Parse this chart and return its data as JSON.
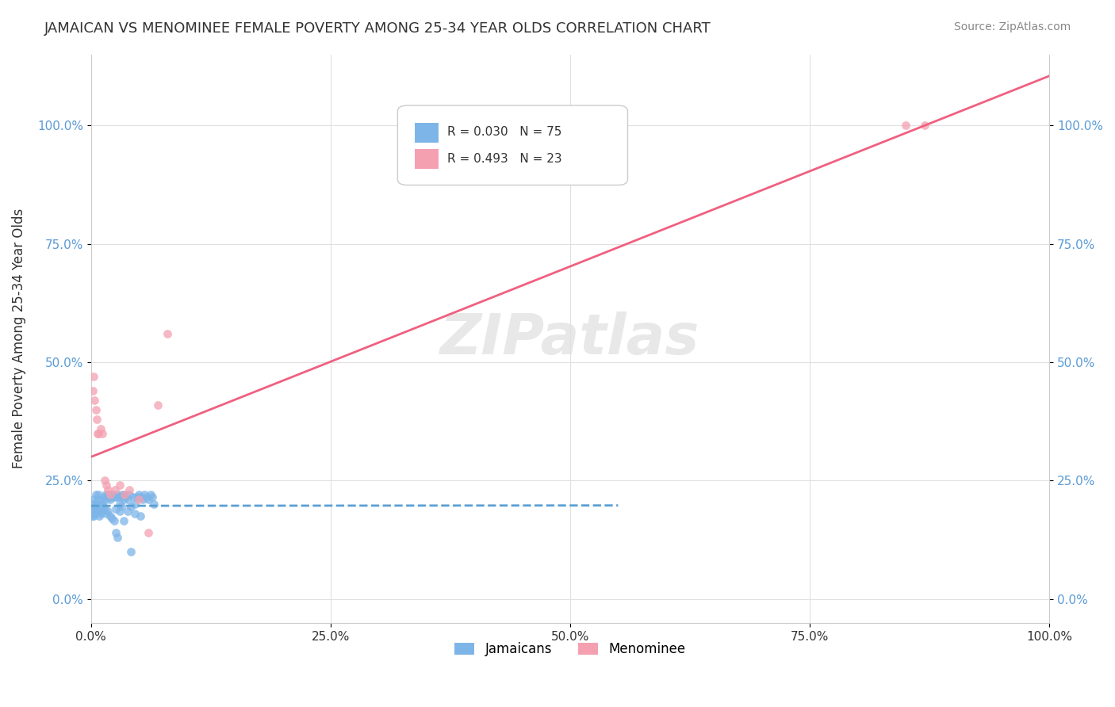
{
  "title": "JAMAICAN VS MENOMINEE FEMALE POVERTY AMONG 25-34 YEAR OLDS CORRELATION CHART",
  "source": "Source: ZipAtlas.com",
  "ylabel": "Female Poverty Among 25-34 Year Olds",
  "xlabel": "",
  "legend_labels": [
    "Jamaicans",
    "Menominee"
  ],
  "r_jamaican": 0.03,
  "n_jamaican": 75,
  "r_menominee": 0.493,
  "n_menominee": 23,
  "background_color": "#ffffff",
  "jamaican_color": "#7eb5e8",
  "menominee_color": "#f4a0b0",
  "jamaican_line_color": "#5a9fd4",
  "menominee_line_color": "#f06080",
  "watermark_color": "#e8e8e8",
  "dot_alpha": 0.75,
  "dot_size": 60,
  "jamaican_x": [
    0.0,
    0.001,
    0.002,
    0.003,
    0.003,
    0.004,
    0.005,
    0.005,
    0.006,
    0.007,
    0.008,
    0.009,
    0.01,
    0.011,
    0.012,
    0.013,
    0.014,
    0.015,
    0.016,
    0.018,
    0.019,
    0.02,
    0.021,
    0.022,
    0.023,
    0.025,
    0.026,
    0.027,
    0.028,
    0.03,
    0.031,
    0.032,
    0.034,
    0.035,
    0.036,
    0.038,
    0.04,
    0.042,
    0.044,
    0.046,
    0.048,
    0.05,
    0.052,
    0.054,
    0.056,
    0.058,
    0.06,
    0.062,
    0.064,
    0.066,
    0.001,
    0.002,
    0.003,
    0.004,
    0.006,
    0.007,
    0.008,
    0.009,
    0.01,
    0.012,
    0.014,
    0.016,
    0.018,
    0.02,
    0.022,
    0.024,
    0.026,
    0.028,
    0.03,
    0.032,
    0.034,
    0.038,
    0.042,
    0.046,
    0.052
  ],
  "jamaican_y": [
    0.18,
    0.19,
    0.2,
    0.21,
    0.175,
    0.18,
    0.22,
    0.19,
    0.2,
    0.21,
    0.22,
    0.195,
    0.185,
    0.21,
    0.2,
    0.195,
    0.215,
    0.22,
    0.21,
    0.22,
    0.215,
    0.21,
    0.22,
    0.215,
    0.22,
    0.215,
    0.19,
    0.22,
    0.215,
    0.2,
    0.215,
    0.22,
    0.21,
    0.22,
    0.215,
    0.21,
    0.22,
    0.195,
    0.215,
    0.2,
    0.215,
    0.22,
    0.215,
    0.21,
    0.22,
    0.215,
    0.21,
    0.22,
    0.215,
    0.2,
    0.175,
    0.185,
    0.19,
    0.195,
    0.185,
    0.195,
    0.185,
    0.175,
    0.18,
    0.185,
    0.19,
    0.18,
    0.185,
    0.175,
    0.17,
    0.165,
    0.14,
    0.13,
    0.185,
    0.195,
    0.165,
    0.185,
    0.1,
    0.18,
    0.175
  ],
  "menominee_x": [
    0.002,
    0.003,
    0.004,
    0.005,
    0.006,
    0.007,
    0.008,
    0.01,
    0.012,
    0.014,
    0.016,
    0.018,
    0.02,
    0.025,
    0.03,
    0.035,
    0.04,
    0.05,
    0.06,
    0.07,
    0.08,
    0.85,
    0.87
  ],
  "menominee_y": [
    0.44,
    0.47,
    0.42,
    0.4,
    0.38,
    0.35,
    0.35,
    0.36,
    0.35,
    0.25,
    0.24,
    0.23,
    0.22,
    0.23,
    0.24,
    0.22,
    0.23,
    0.21,
    0.14,
    0.41,
    0.56,
    1.0,
    1.0
  ],
  "xlim": [
    0.0,
    1.0
  ],
  "ylim": [
    -0.05,
    1.15
  ],
  "xticks": [
    0.0,
    0.25,
    0.5,
    0.75,
    1.0
  ],
  "yticks": [
    0.0,
    0.25,
    0.5,
    0.75,
    1.0
  ],
  "xtick_labels": [
    "0.0%",
    "25.0%",
    "50.0%",
    "75.0%",
    "100.0%"
  ],
  "ytick_labels": [
    "0.0%",
    "25.0%",
    "50.0%",
    "75.0%",
    "100.0%"
  ]
}
